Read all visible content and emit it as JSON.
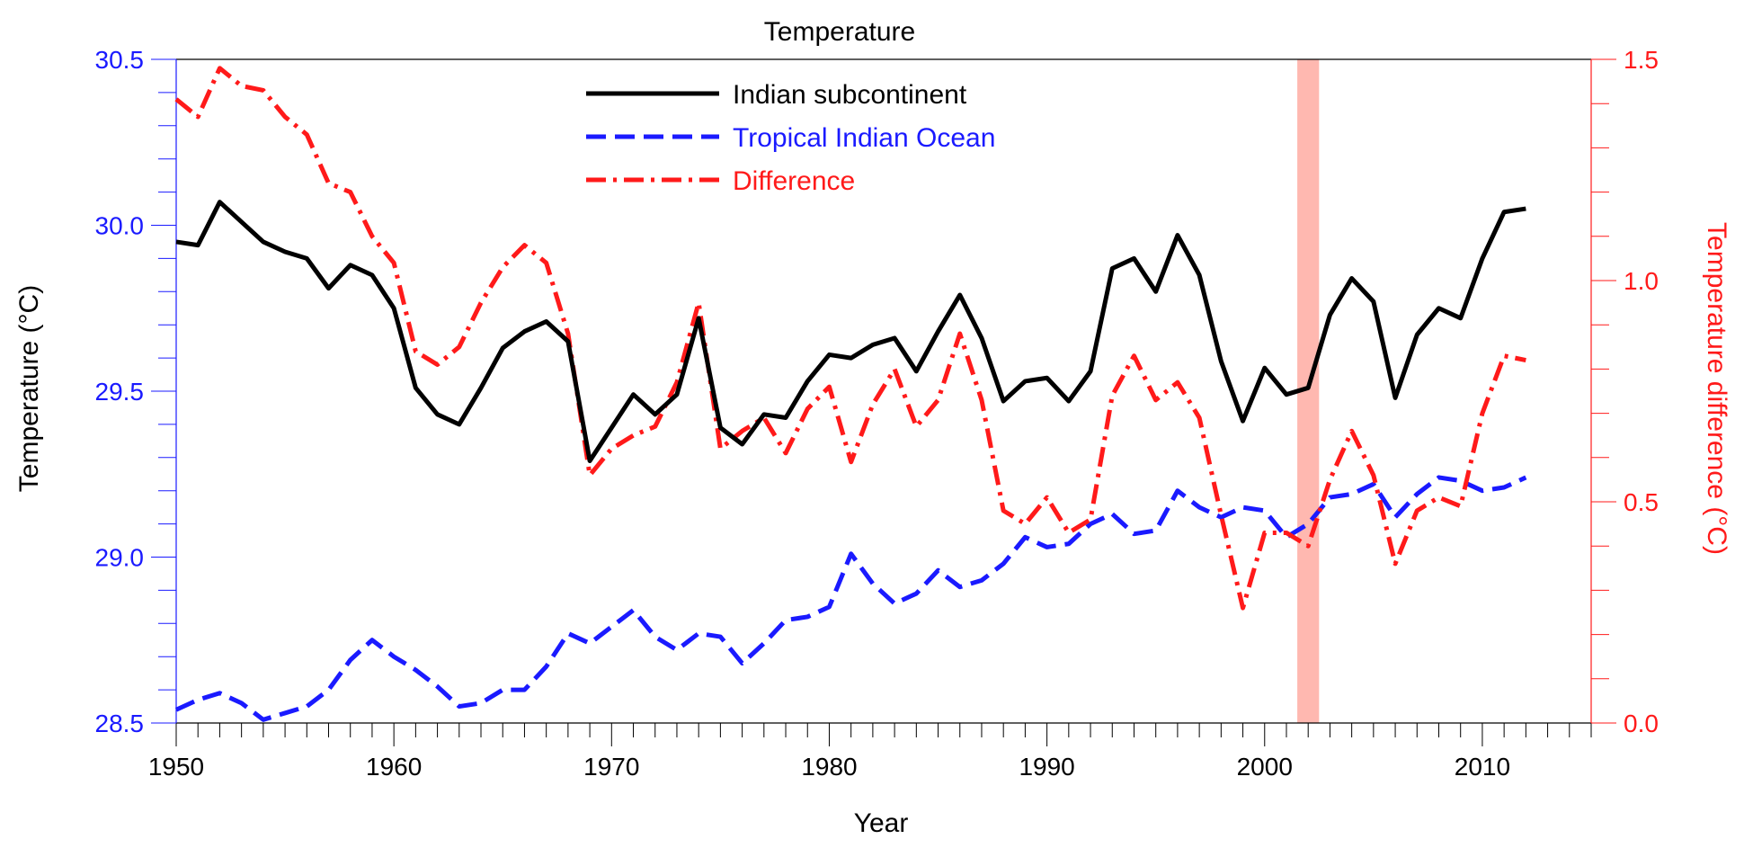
{
  "chart_data": {
    "type": "line",
    "title": "Temperature",
    "xlabel": "Year",
    "ylabel_left": "Temperature (°C)",
    "ylabel_right": "Temperature difference (°C)",
    "xlim": [
      1950,
      2015
    ],
    "ylim_left": [
      28.5,
      30.5
    ],
    "ylim_right": [
      0.0,
      1.5
    ],
    "x_ticks": [
      1950,
      1960,
      1970,
      1980,
      1990,
      2000,
      2010
    ],
    "y_left_ticks": [
      "28.5",
      "29.0",
      "29.5",
      "30.0",
      "30.5"
    ],
    "y_right_ticks": [
      "0.0",
      "0.5",
      "1.0",
      "1.5"
    ],
    "colors": {
      "left_axis": "#1a1aff",
      "right_axis": "#ff1a1a",
      "highlight": "#ffb8b0"
    },
    "highlight_band": {
      "x_start": 2001.5,
      "x_end": 2002.5
    },
    "legend_position": "top-center",
    "x": [
      1950,
      1951,
      1952,
      1953,
      1954,
      1955,
      1956,
      1957,
      1958,
      1959,
      1960,
      1961,
      1962,
      1963,
      1964,
      1965,
      1966,
      1967,
      1968,
      1969,
      1970,
      1971,
      1972,
      1973,
      1974,
      1975,
      1976,
      1977,
      1978,
      1979,
      1980,
      1981,
      1982,
      1983,
      1984,
      1985,
      1986,
      1987,
      1988,
      1989,
      1990,
      1991,
      1992,
      1993,
      1994,
      1995,
      1996,
      1997,
      1998,
      1999,
      2000,
      2001,
      2002,
      2003,
      2004,
      2005,
      2006,
      2007,
      2008,
      2009,
      2010,
      2011,
      2012
    ],
    "series": [
      {
        "name": "Indian subcontinent",
        "axis": "left",
        "color": "#000000",
        "style": "solid",
        "values": [
          29.95,
          29.94,
          30.07,
          30.01,
          29.95,
          29.92,
          29.9,
          29.81,
          29.88,
          29.85,
          29.75,
          29.51,
          29.43,
          29.4,
          29.51,
          29.63,
          29.68,
          29.71,
          29.65,
          29.29,
          29.39,
          29.49,
          29.43,
          29.49,
          29.72,
          29.39,
          29.34,
          29.43,
          29.42,
          29.53,
          29.61,
          29.6,
          29.64,
          29.66,
          29.56,
          29.68,
          29.79,
          29.66,
          29.47,
          29.53,
          29.54,
          29.47,
          29.56,
          29.87,
          29.9,
          29.8,
          29.97,
          29.85,
          29.59,
          29.41,
          29.57,
          29.49,
          29.51,
          29.73,
          29.84,
          29.77,
          29.48,
          29.67,
          29.75,
          29.72,
          29.9,
          30.04,
          30.05
        ]
      },
      {
        "name": "Tropical Indian Ocean",
        "axis": "left",
        "color": "#1a1aff",
        "style": "dashed",
        "values": [
          28.54,
          28.57,
          28.59,
          28.56,
          28.51,
          28.53,
          28.55,
          28.6,
          28.69,
          28.75,
          28.7,
          28.66,
          28.61,
          28.55,
          28.56,
          28.6,
          28.6,
          28.67,
          28.77,
          28.74,
          28.79,
          28.84,
          28.76,
          28.72,
          28.77,
          28.76,
          28.68,
          28.74,
          28.81,
          28.82,
          28.85,
          29.01,
          28.92,
          28.86,
          28.89,
          28.96,
          28.91,
          28.93,
          28.98,
          29.06,
          29.03,
          29.04,
          29.1,
          29.13,
          29.07,
          29.08,
          29.2,
          29.15,
          29.12,
          29.15,
          29.14,
          29.06,
          29.1,
          29.18,
          29.19,
          29.22,
          29.12,
          29.19,
          29.24,
          29.23,
          29.2,
          29.21,
          29.24
        ]
      },
      {
        "name": "Difference",
        "axis": "right",
        "color": "#ff1a1a",
        "style": "dashdot",
        "values": [
          1.41,
          1.37,
          1.48,
          1.44,
          1.43,
          1.37,
          1.33,
          1.22,
          1.2,
          1.1,
          1.04,
          0.84,
          0.81,
          0.85,
          0.95,
          1.03,
          1.08,
          1.04,
          0.88,
          0.56,
          0.62,
          0.65,
          0.67,
          0.77,
          0.95,
          0.62,
          0.66,
          0.69,
          0.61,
          0.71,
          0.76,
          0.59,
          0.72,
          0.8,
          0.67,
          0.73,
          0.88,
          0.73,
          0.48,
          0.45,
          0.51,
          0.43,
          0.46,
          0.74,
          0.83,
          0.73,
          0.77,
          0.69,
          0.47,
          0.26,
          0.43,
          0.43,
          0.4,
          0.55,
          0.66,
          0.56,
          0.36,
          0.48,
          0.51,
          0.49,
          0.7,
          0.83,
          0.82
        ]
      }
    ]
  }
}
